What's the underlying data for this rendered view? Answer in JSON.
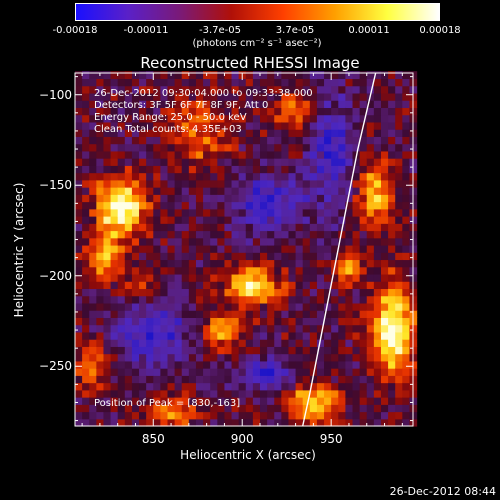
{
  "colorbar": {
    "tick_labels": [
      "-0.00018",
      "-0.00011",
      "-3.7e-05",
      "3.7e-05",
      "0.00011",
      "0.00018"
    ],
    "tick_values": [
      -0.00018,
      -0.00011,
      -3.7e-05,
      3.7e-05,
      0.00011,
      0.00018
    ],
    "range": [
      -0.00018,
      0.00018
    ],
    "units": "(photons cm⁻² s⁻¹ asec⁻²)",
    "colors": [
      "#1a10ff",
      "#5a20c8",
      "#7a1a78",
      "#b01008",
      "#ff4000",
      "#ffa000",
      "#ffff40",
      "#ffffff"
    ]
  },
  "chart_data": {
    "type": "heatmap",
    "title": "Reconstructed RHESSI Image",
    "xlabel": "Heliocentric X (arcsec)",
    "ylabel": "Heliocentric Y (arcsec)",
    "xlim": [
      806,
      996
    ],
    "ylim": [
      -283,
      -88
    ],
    "x_ticks": [
      850,
      900,
      950
    ],
    "y_ticks": [
      -250,
      -200,
      -150,
      -100
    ],
    "info_lines": [
      "26-Dec-2012 09:30:04.000 to 09:33:38.000",
      "Detectors: 3F 5F 6F 7F 8F 9F, Att 0",
      "Energy Range: 25.0 - 50.0 keV",
      "Clean    Total counts: 4.35E+03"
    ],
    "peak_label": "Position of Peak = [830,-163]",
    "peak": [
      830,
      -163
    ],
    "limb_curve": [
      [
        975,
        -88
      ],
      [
        965,
        -130
      ],
      [
        955,
        -180
      ],
      [
        945,
        -230
      ],
      [
        938,
        -265
      ],
      [
        934,
        -283
      ]
    ],
    "bright_regions": [
      {
        "x": 832,
        "y": -162,
        "rx": 14,
        "ry": 16,
        "level": 1.0
      },
      {
        "x": 822,
        "y": -190,
        "rx": 10,
        "ry": 12,
        "level": 0.7
      },
      {
        "x": 905,
        "y": -205,
        "rx": 16,
        "ry": 10,
        "level": 0.85
      },
      {
        "x": 890,
        "y": -230,
        "rx": 12,
        "ry": 10,
        "level": 0.6
      },
      {
        "x": 985,
        "y": -230,
        "rx": 12,
        "ry": 26,
        "level": 0.95
      },
      {
        "x": 975,
        "y": -155,
        "rx": 10,
        "ry": 18,
        "level": 0.7
      },
      {
        "x": 940,
        "y": -270,
        "rx": 14,
        "ry": 10,
        "level": 0.85
      },
      {
        "x": 875,
        "y": -120,
        "rx": 18,
        "ry": 20,
        "level": 0.45
      },
      {
        "x": 815,
        "y": -250,
        "rx": 10,
        "ry": 12,
        "level": 0.55
      },
      {
        "x": 860,
        "y": -275,
        "rx": 14,
        "ry": 8,
        "level": 0.6
      },
      {
        "x": 930,
        "y": -110,
        "rx": 12,
        "ry": 14,
        "level": 0.4
      },
      {
        "x": 960,
        "y": -195,
        "rx": 8,
        "ry": 10,
        "level": 0.5
      },
      {
        "x": 845,
        "y": -205,
        "rx": 10,
        "ry": 10,
        "level": 0.4
      }
    ],
    "dark_regions": [
      {
        "x": 850,
        "y": -230,
        "rx": 22,
        "ry": 20
      },
      {
        "x": 915,
        "y": -160,
        "rx": 20,
        "ry": 16
      },
      {
        "x": 950,
        "y": -130,
        "rx": 12,
        "ry": 30
      },
      {
        "x": 915,
        "y": -255,
        "rx": 14,
        "ry": 10
      }
    ]
  },
  "timestamp": "26-Dec-2012 08:44"
}
